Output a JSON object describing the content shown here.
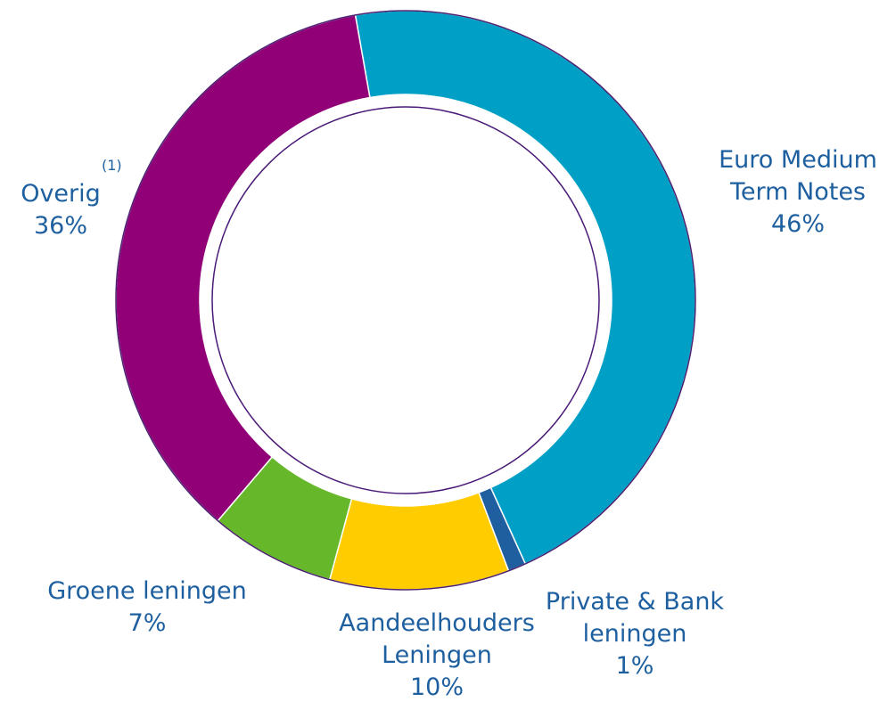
{
  "chart_data": {
    "type": "donut",
    "categories": [
      "Euro Medium Term Notes",
      "Private & Bank leningen",
      "Aandeelhouders Leningen",
      "Groene leningen",
      "Overig"
    ],
    "values": [
      46,
      1,
      10,
      7,
      36
    ],
    "value_labels": [
      "46%",
      "1%",
      "10%",
      "7%",
      "36%"
    ],
    "colors": [
      "#00a0c6",
      "#1f5fa0",
      "#ffcc00",
      "#66b82a",
      "#910077"
    ],
    "annotation": "(1)"
  }
}
